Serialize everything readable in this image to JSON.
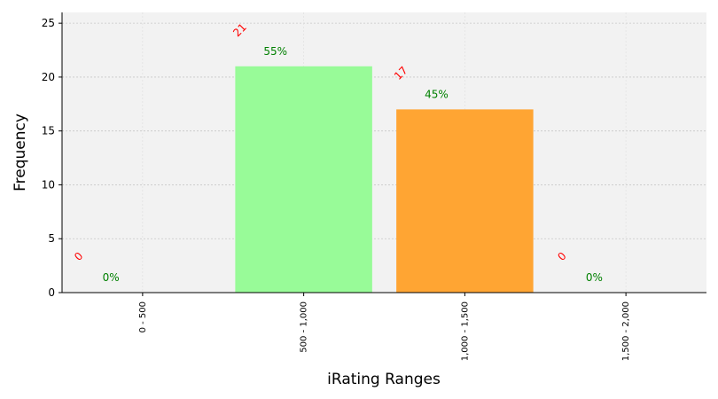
{
  "chart_data": {
    "type": "bar",
    "title": "",
    "xlabel": "iRating Ranges",
    "ylabel": "Frequency",
    "categories": [
      "0 - 500",
      "500 - 1,000",
      "1,000 - 1,500",
      "1,500 - 2,000"
    ],
    "values": [
      0,
      21,
      17,
      0
    ],
    "count_labels": [
      "0",
      "21",
      "17",
      "0"
    ],
    "percent_labels": [
      "0%",
      "55%",
      "45%",
      "0%"
    ],
    "bar_colors": [
      "#98fb98",
      "#98fb98",
      "#ffa533",
      "#ffa533"
    ],
    "count_label_color": "#ff0000",
    "percent_label_color": "#008000",
    "plot_background": "#f2f2f2",
    "ylim": [
      0,
      26
    ],
    "yticks": [
      0,
      5,
      10,
      15,
      20,
      25
    ],
    "grid": true,
    "legend": "none"
  }
}
